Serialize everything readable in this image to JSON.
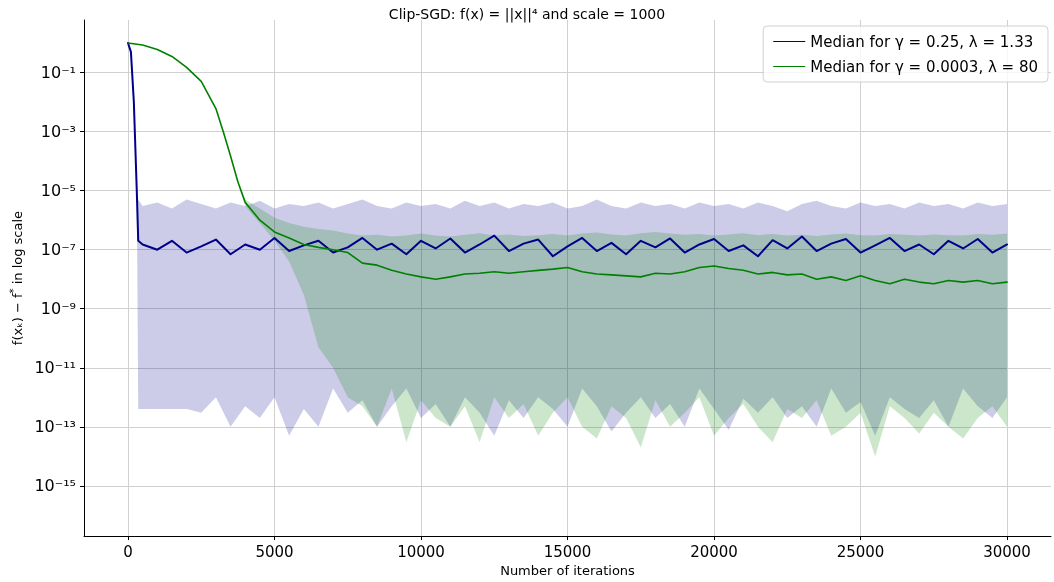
{
  "chart_data": {
    "type": "line",
    "title": "Clip-SGD: f(x) = ||x||⁴ and scale = 1000",
    "xlabel": "Number of iterations",
    "ylabel": "f(xₖ) − f$^{*}$ in log scale",
    "log": "y",
    "grid": true,
    "legend": "top right",
    "marker": "none",
    "line_style": "solid",
    "xlim": [
      -1500,
      31500
    ],
    "xticks": [
      0,
      5000,
      10000,
      15000,
      20000,
      25000,
      30000
    ],
    "ylim": [
      2e-17,
      6
    ],
    "yticks": [
      {
        "value": 1e-15,
        "label": "10⁻¹⁵"
      },
      {
        "value": 1e-13,
        "label": "10⁻¹³"
      },
      {
        "value": 1e-11,
        "label": "10⁻¹¹"
      },
      {
        "value": 1e-09,
        "label": "10⁻⁹"
      },
      {
        "value": 1e-07,
        "label": "10⁻⁷"
      },
      {
        "value": 1e-05,
        "label": "10⁻⁵"
      },
      {
        "value": 0.001,
        "label": "10⁻³"
      },
      {
        "value": 0.1,
        "label": "10⁻¹"
      }
    ],
    "series": [
      {
        "name": "Median for γ = 0.25, λ = 1.33",
        "color": "#00008b",
        "x": [
          0,
          100,
          200,
          300,
          350,
          500,
          1000,
          1500,
          2000,
          2500,
          3000,
          3500,
          4000,
          4500,
          5000,
          5500,
          6000,
          6500,
          7000,
          7500,
          8000,
          8500,
          9000,
          9500,
          10000,
          10500,
          11000,
          11500,
          12000,
          12500,
          13000,
          13500,
          14000,
          14500,
          15000,
          15500,
          16000,
          16500,
          17000,
          17500,
          18000,
          18500,
          19000,
          19500,
          20000,
          20500,
          21000,
          21500,
          22000,
          22500,
          23000,
          23500,
          24000,
          24500,
          25000,
          25500,
          26000,
          26500,
          27000,
          27500,
          28000,
          28500,
          29000,
          29500,
          30000
        ],
        "values": [
          1,
          0.5,
          0.01,
          1e-05,
          2e-07,
          1.5e-07,
          1e-07,
          2e-07,
          8e-08,
          1.3e-07,
          2.2e-07,
          7e-08,
          1.5e-07,
          1e-07,
          2.5e-07,
          9e-08,
          1.4e-07,
          2e-07,
          8e-08,
          1.2e-07,
          2.5e-07,
          1e-07,
          1.6e-07,
          7e-08,
          2e-07,
          1.1e-07,
          2.4e-07,
          8e-08,
          1.5e-07,
          3e-07,
          9e-08,
          1.6e-07,
          2.2e-07,
          6e-08,
          1.3e-07,
          2.5e-07,
          9e-08,
          1.7e-07,
          7e-08,
          2e-07,
          1.2e-07,
          2.4e-07,
          8e-08,
          1.5e-07,
          2.3e-07,
          9e-08,
          1.4e-07,
          6e-08,
          2.1e-07,
          1.1e-07,
          2.8e-07,
          9e-08,
          1.6e-07,
          2.3e-07,
          8e-08,
          1.4e-07,
          2.5e-07,
          9e-08,
          1.5e-07,
          7e-08,
          2e-07,
          1.1e-07,
          2.3e-07,
          8e-08,
          1.5e-07
        ],
        "upper": [
          1,
          0.5,
          0.01,
          1e-05,
          5e-06,
          3e-06,
          4e-06,
          2.5e-06,
          5e-06,
          3.5e-06,
          2.5e-06,
          4e-06,
          3e-06,
          4.5e-06,
          2.5e-06,
          3.5e-06,
          3e-06,
          4e-06,
          2.5e-06,
          3.5e-06,
          5e-06,
          3e-06,
          2.5e-06,
          4e-06,
          3e-06,
          3.5e-06,
          2.5e-06,
          4.5e-06,
          3e-06,
          4e-06,
          2.5e-06,
          3.5e-06,
          3e-06,
          4e-06,
          2.5e-06,
          3e-06,
          5e-06,
          3e-06,
          2.5e-06,
          4e-06,
          3e-06,
          3.5e-06,
          2.5e-06,
          4e-06,
          3e-06,
          3.5e-06,
          2.5e-06,
          4e-06,
          3e-06,
          2e-06,
          3.5e-06,
          4.5e-06,
          3e-06,
          2.5e-06,
          4e-06,
          3e-06,
          3.5e-06,
          2.5e-06,
          4e-06,
          3e-06,
          3.5e-06,
          2.5e-06,
          4e-06,
          3e-06,
          3.5e-06
        ],
        "lower": [
          1,
          0.5,
          0.01,
          1e-05,
          4e-13,
          4e-13,
          4e-13,
          4e-13,
          4e-13,
          3e-13,
          1e-12,
          1e-13,
          5e-13,
          2e-13,
          1e-12,
          5e-14,
          4e-13,
          1e-13,
          2e-12,
          3e-13,
          8e-13,
          1e-13,
          5e-13,
          2e-12,
          2e-13,
          6e-13,
          1e-13,
          1e-12,
          3e-13,
          5e-14,
          8e-13,
          2e-13,
          1e-12,
          4e-13,
          1e-13,
          2e-12,
          5e-13,
          7e-14,
          3e-13,
          1e-12,
          2e-13,
          6e-13,
          1e-13,
          2e-12,
          4e-13,
          8e-14,
          9e-13,
          3e-13,
          1e-12,
          2e-13,
          5e-13,
          1e-13,
          2e-12,
          3e-13,
          7e-13,
          5e-14,
          1e-12,
          4e-13,
          2e-13,
          8e-13,
          1e-13,
          2e-12,
          5e-13,
          2e-13,
          1e-12
        ]
      },
      {
        "name": "Median for γ = 0.0003, λ = 80",
        "color": "#008000",
        "x": [
          0,
          500,
          1000,
          1500,
          2000,
          2500,
          3000,
          3250,
          3500,
          3750,
          4000,
          4250,
          4500,
          5000,
          5500,
          6000,
          6500,
          7000,
          7500,
          8000,
          8500,
          9000,
          9500,
          10000,
          10500,
          11000,
          11500,
          12000,
          12500,
          13000,
          13500,
          14000,
          14500,
          15000,
          15500,
          16000,
          16500,
          17000,
          17500,
          18000,
          18500,
          19000,
          19500,
          20000,
          20500,
          21000,
          21500,
          22000,
          22500,
          23000,
          23500,
          24000,
          24500,
          25000,
          25500,
          26000,
          26500,
          27000,
          27500,
          28000,
          28500,
          29000,
          29500,
          30000
        ],
        "values": [
          1,
          0.85,
          0.6,
          0.35,
          0.15,
          0.05,
          0.006,
          0.001,
          0.00015,
          2e-05,
          4e-06,
          2e-06,
          1e-06,
          4e-07,
          2.5e-07,
          1.5e-07,
          1.2e-07,
          1e-07,
          8e-08,
          3.5e-08,
          3e-08,
          2e-08,
          1.5e-08,
          1.2e-08,
          1e-08,
          1.2e-08,
          1.5e-08,
          1.6e-08,
          1.8e-08,
          1.6e-08,
          1.8e-08,
          2e-08,
          2.2e-08,
          2.5e-08,
          1.8e-08,
          1.5e-08,
          1.4e-08,
          1.3e-08,
          1.2e-08,
          1.6e-08,
          1.5e-08,
          1.8e-08,
          2.5e-08,
          2.8e-08,
          2.3e-08,
          2e-08,
          1.5e-08,
          1.7e-08,
          1.4e-08,
          1.5e-08,
          1e-08,
          1.2e-08,
          9e-09,
          1.3e-08,
          9e-09,
          7e-09,
          1e-08,
          8e-09,
          7e-09,
          9e-09,
          8e-09,
          9e-09,
          7e-09,
          8e-09
        ],
        "upper": [
          1,
          0.85,
          0.6,
          0.35,
          0.15,
          0.05,
          0.006,
          0.001,
          0.00015,
          2e-05,
          5e-06,
          3.5e-06,
          2.5e-06,
          1.2e-06,
          8e-07,
          6e-07,
          5e-07,
          4.5e-07,
          3.5e-07,
          3e-07,
          3.2e-07,
          2.8e-07,
          3e-07,
          3.5e-07,
          3e-07,
          2.8e-07,
          3.2e-07,
          3.6e-07,
          3e-07,
          3.3e-07,
          2.9e-07,
          3.1e-07,
          3.4e-07,
          3e-07,
          3.5e-07,
          3.8e-07,
          3.3e-07,
          3e-07,
          3.6e-07,
          4e-07,
          3.5e-07,
          3.2e-07,
          3.4e-07,
          3e-07,
          3.3e-07,
          3.6e-07,
          3.1e-07,
          3.4e-07,
          3e-07,
          3.2e-07,
          2.9e-07,
          3.3e-07,
          3.5e-07,
          3.1e-07,
          3e-07,
          3.4e-07,
          3.2e-07,
          3e-07,
          3.3e-07,
          3.1e-07,
          3e-07,
          3.4e-07,
          3.2e-07,
          3.5e-07
        ],
        "lower": [
          1,
          0.85,
          0.6,
          0.35,
          0.15,
          0.05,
          0.006,
          0.001,
          0.00015,
          2e-05,
          3e-06,
          1.5e-06,
          8e-07,
          2e-07,
          4e-08,
          3e-09,
          5e-11,
          1e-11,
          1e-12,
          5e-13,
          1e-13,
          2e-12,
          3e-14,
          8e-13,
          2e-13,
          1e-13,
          5e-13,
          3e-14,
          1e-12,
          2e-13,
          6e-13,
          5e-14,
          3e-13,
          1e-12,
          1e-13,
          4e-14,
          5e-13,
          2e-13,
          2e-14,
          8e-13,
          1e-13,
          3e-13,
          1e-12,
          5e-14,
          2e-13,
          6e-13,
          1e-13,
          3e-14,
          4e-13,
          2e-13,
          8e-13,
          5e-14,
          1e-13,
          3e-13,
          1e-14,
          5e-13,
          2e-13,
          6e-14,
          3e-13,
          1e-13,
          4e-14,
          2e-13,
          5e-13,
          1e-13
        ]
      }
    ]
  }
}
